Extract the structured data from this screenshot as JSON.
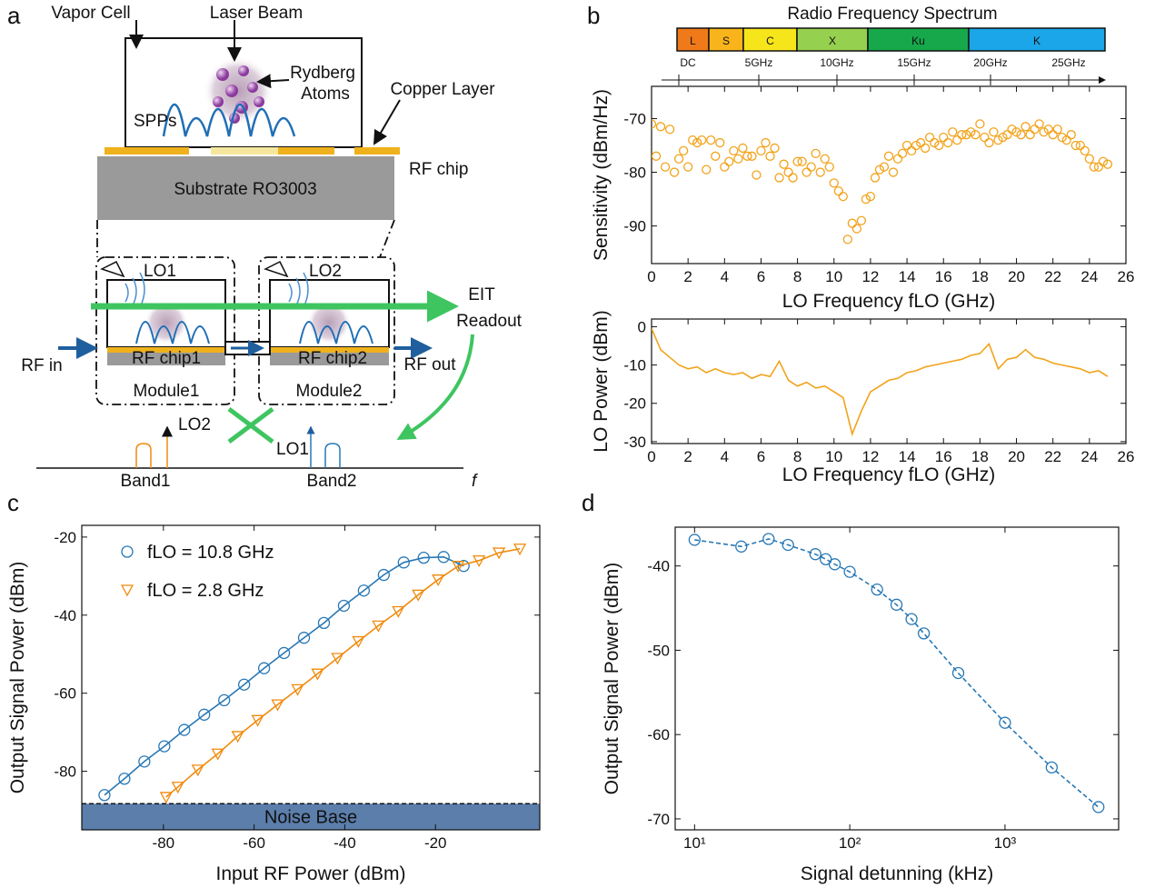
{
  "panel_labels": [
    "a",
    "b",
    "c",
    "d"
  ],
  "diagram": {
    "labels": {
      "vapor_cell": "Vapor Cell",
      "laser_beam": "Laser Beam",
      "rydberg": "Rydberg",
      "atoms": "Atoms",
      "copper_layer": "Copper Layer",
      "spps": "SPPs",
      "rf_chip": "RF chip",
      "substrate": "Substrate RO3003",
      "lo1_top": "LO1",
      "lo2_top": "LO2",
      "eit": "EIT",
      "readout": "Readout",
      "rf_in": "RF in",
      "rf_chip1": "RF chip1",
      "rf_chip2": "RF chip2",
      "rf_out": "RF out",
      "module1": "Module1",
      "module2": "Module2",
      "lo2_bottom": "LO2",
      "lo1_bottom": "LO1",
      "band1": "Band1",
      "band2": "Band2",
      "f_axis": "f"
    }
  },
  "spectrum": {
    "title": "Radio  Frequency Spectrum",
    "bands": [
      "L",
      "S",
      "C",
      "X",
      "Ku",
      "K"
    ],
    "ticks": [
      "DC",
      "5GHz",
      "10GHz",
      "15GHz",
      "20GHz",
      "25GHz"
    ]
  },
  "chart_data": [
    {
      "type": "scatter",
      "y_label": "Sensitivity (dBm/Hz)",
      "x_label": "LO Frequency fLO (GHz)",
      "color": "#f2a31b",
      "xlim": [
        0,
        26
      ],
      "xticks": [
        0,
        2,
        4,
        6,
        8,
        10,
        12,
        14,
        16,
        18,
        20,
        22,
        24,
        26
      ],
      "ylim": [
        -97,
        -64
      ],
      "yticks": [
        -90,
        -80,
        -70
      ],
      "x": [
        0,
        0.25,
        0.5,
        0.75,
        1,
        1.25,
        1.5,
        1.75,
        2,
        2.25,
        2.5,
        2.75,
        3,
        3.25,
        3.5,
        3.75,
        4,
        4.25,
        4.5,
        4.75,
        5,
        5.25,
        5.5,
        5.75,
        6,
        6.25,
        6.5,
        6.75,
        7,
        7.25,
        7.5,
        7.75,
        8,
        8.25,
        8.5,
        8.75,
        9,
        9.25,
        9.5,
        9.75,
        10,
        10.25,
        10.5,
        10.75,
        11,
        11.25,
        11.5,
        11.75,
        12,
        12.25,
        12.5,
        12.75,
        13,
        13.25,
        13.5,
        13.75,
        14,
        14.25,
        14.5,
        14.75,
        15,
        15.25,
        15.5,
        15.75,
        16,
        16.25,
        16.5,
        16.75,
        17,
        17.25,
        17.5,
        17.75,
        18,
        18.25,
        18.5,
        18.75,
        19,
        19.25,
        19.5,
        19.75,
        20,
        20.25,
        20.5,
        20.75,
        21,
        21.25,
        21.5,
        21.75,
        22,
        22.25,
        22.5,
        22.75,
        23,
        23.25,
        23.5,
        23.75,
        24,
        24.25,
        24.5,
        24.75,
        25
      ],
      "values": [
        -71,
        -77,
        -71.5,
        -79,
        -72,
        -80,
        -77.5,
        -76,
        -79,
        -74,
        -74.5,
        -74,
        -79.5,
        -74,
        -77,
        -74.5,
        -79,
        -78,
        -76,
        -77.5,
        -75.5,
        -77,
        -77,
        -80.5,
        -76,
        -74.5,
        -77,
        -75.5,
        -81,
        -78.5,
        -80,
        -81,
        -78,
        -78,
        -80,
        -79,
        -76.5,
        -80,
        -77.5,
        -79,
        -82,
        -83.5,
        -84.5,
        -92.5,
        -89.5,
        -90.5,
        -89,
        -85,
        -84.5,
        -81,
        -79.5,
        -79,
        -77,
        -80,
        -77.5,
        -76.5,
        -75,
        -76,
        -75,
        -74.5,
        -75.5,
        -73.5,
        -74.5,
        -75,
        -73.5,
        -74.5,
        -72.5,
        -74,
        -73,
        -73,
        -72.5,
        -73,
        -71,
        -73.5,
        -74.5,
        -72.5,
        -74,
        -73.5,
        -73,
        -72,
        -72.5,
        -73,
        -71.5,
        -73,
        -72,
        -71,
        -72.5,
        -72,
        -73,
        -72,
        -73.5,
        -74,
        -73,
        -75,
        -75,
        -76,
        -77.5,
        -79,
        -79,
        -78,
        -78.5
      ]
    },
    {
      "type": "line",
      "y_label": "LO Power (dBm)",
      "x_label": "LO Frequency fLO (GHz)",
      "color": "#f2a31b",
      "xlim": [
        0,
        26
      ],
      "xticks": [
        0,
        2,
        4,
        6,
        8,
        10,
        12,
        14,
        16,
        18,
        20,
        22,
        24,
        26
      ],
      "ylim": [
        -30.5,
        2
      ],
      "yticks": [
        -30,
        -20,
        -10,
        0
      ],
      "x": [
        0,
        0.5,
        1,
        1.5,
        2,
        2.5,
        3,
        3.5,
        4,
        4.5,
        5,
        5.5,
        6,
        6.5,
        7,
        7.5,
        8,
        8.5,
        9,
        9.5,
        10,
        10.5,
        11,
        11.5,
        12,
        12.5,
        13,
        13.5,
        14,
        14.5,
        15,
        15.5,
        16,
        16.5,
        17,
        17.5,
        18,
        18.5,
        19,
        19.5,
        20,
        20.5,
        21,
        21.5,
        22,
        22.5,
        23,
        23.5,
        24,
        24.5,
        25
      ],
      "values": [
        -0.5,
        -6,
        -8,
        -10,
        -11,
        -10.5,
        -12,
        -11,
        -12,
        -12.5,
        -12,
        -13.5,
        -12.5,
        -13,
        -9,
        -14,
        -15.5,
        -14.5,
        -16,
        -15.5,
        -17,
        -18.5,
        -28,
        -22,
        -17,
        -15.5,
        -14,
        -13.5,
        -12,
        -11.5,
        -10.5,
        -10,
        -9.5,
        -9,
        -8.5,
        -7.5,
        -7,
        -4.5,
        -11,
        -8.5,
        -8,
        -6,
        -8,
        -8.5,
        -9.5,
        -10,
        -10.5,
        -11,
        -12,
        -11.5,
        -13
      ]
    },
    {
      "type": "line",
      "y_label": "Output Signal Power (dBm)",
      "x_label": "Input RF Power (dBm)",
      "xlim": [
        -98,
        3
      ],
      "xticks": [
        -80,
        -60,
        -40,
        -20
      ],
      "ylim": [
        -95,
        -17
      ],
      "yticks": [
        -80,
        -60,
        -40,
        -20
      ],
      "noise_base": -88.3,
      "noise_label": "Noise Base",
      "series": [
        {
          "name": "fLO = 10.8 GHz",
          "color": "#2878b5",
          "marker": "circle",
          "x": [
            -93,
            -88.6,
            -84.2,
            -79.8,
            -75.4,
            -71,
            -66.6,
            -62.2,
            -57.8,
            -53.4,
            -49,
            -44.6,
            -40.2,
            -35.8,
            -31.4,
            -27,
            -22.6,
            -18.2,
            -13.8
          ],
          "values": [
            -86.1,
            -81.9,
            -77.5,
            -73.6,
            -69.4,
            -65.5,
            -61.8,
            -57.8,
            -53.6,
            -49.7,
            -45.8,
            -42,
            -37.6,
            -33.7,
            -29.7,
            -26.5,
            -25.3,
            -25.1,
            -27.4
          ]
        },
        {
          "name": "fLO = 2.8 GHz",
          "color": "#f08a0c",
          "marker": "triangle",
          "x": [
            -79.4,
            -76.8,
            -72.4,
            -68,
            -63.6,
            -59.2,
            -54.8,
            -50.4,
            -46,
            -41.6,
            -37,
            -32.6,
            -28.2,
            -23.8,
            -19.4,
            -15,
            -10.4,
            -6,
            -1.4
          ],
          "values": [
            -86.6,
            -84,
            -79.6,
            -75.5,
            -71,
            -66.9,
            -62.9,
            -59,
            -55,
            -51,
            -46.7,
            -42.7,
            -39,
            -34.8,
            -30.9,
            -27.4,
            -26,
            -24,
            -23
          ]
        }
      ]
    },
    {
      "type": "line",
      "y_label": "Output Signal Power (dBm)",
      "x_label": "Signal detunning (kHz)",
      "xscale": "log",
      "color": "#2878b5",
      "dashed": true,
      "xlim": [
        7.5,
        5400
      ],
      "xticks": [
        {
          "value": 10,
          "label": "10¹"
        },
        {
          "value": 100,
          "label": "10²"
        },
        {
          "value": 1000,
          "label": "10³"
        }
      ],
      "ylim": [
        -71.3,
        -35.4
      ],
      "yticks": [
        -70,
        -60,
        -50,
        -40
      ],
      "x": [
        10,
        20,
        30,
        40,
        60,
        70,
        80,
        100,
        150,
        200,
        250,
        300,
        500,
        1000,
        2000,
        4000
      ],
      "values": [
        -36.9,
        -37.7,
        -36.8,
        -37.5,
        -38.6,
        -39.2,
        -39.8,
        -40.7,
        -42.8,
        -44.6,
        -46.3,
        -48,
        -52.7,
        -58.6,
        -63.9,
        -68.6
      ]
    }
  ]
}
